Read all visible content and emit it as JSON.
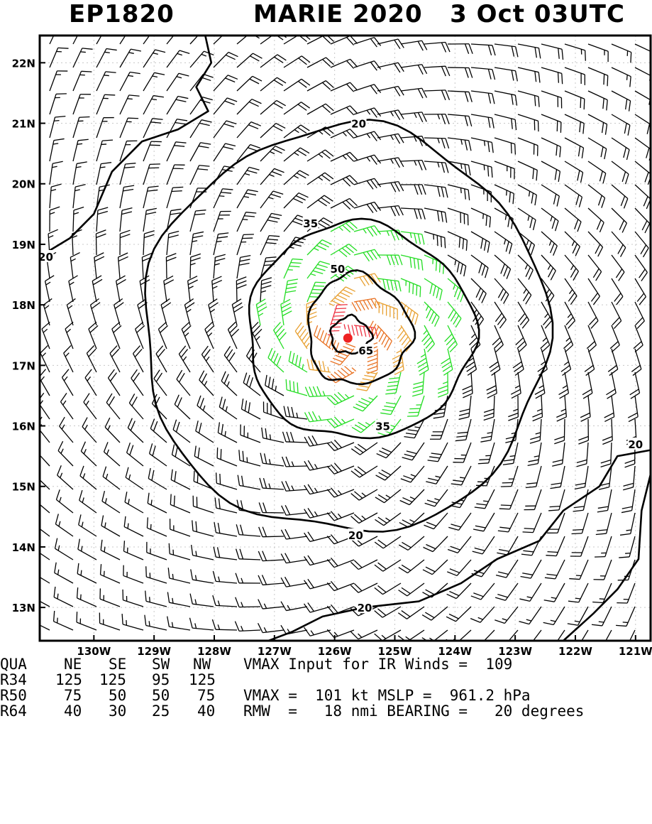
{
  "header": {
    "storm_id": "EP1820",
    "storm_info": "MARIE 2020   3 Oct 03UTC"
  },
  "chart_data": {
    "type": "wind_barb_contour_map",
    "title": "EP1820   MARIE 2020   3 Oct 03UTC",
    "x_axis": {
      "labels": [
        "130W",
        "129W",
        "128W",
        "127W",
        "126W",
        "125W",
        "124W",
        "123W",
        "122W",
        "121W"
      ],
      "values": [
        -130,
        -129,
        -128,
        -127,
        -126,
        -125,
        -124,
        -123,
        -122,
        -121
      ],
      "range": [
        -130.9,
        -120.75
      ]
    },
    "y_axis": {
      "labels": [
        "22N",
        "21N",
        "20N",
        "19N",
        "18N",
        "17N",
        "16N",
        "15N",
        "14N",
        "13N"
      ],
      "values": [
        22,
        21,
        20,
        19,
        18,
        17,
        16,
        15,
        14,
        13
      ],
      "range": [
        12.45,
        22.45
      ]
    },
    "center": {
      "lon": -125.78,
      "lat": 17.45
    },
    "contour_labels": [
      {
        "text": "20",
        "lon": -125.6,
        "lat": 21.0
      },
      {
        "text": "20",
        "lon": -130.8,
        "lat": 18.8
      },
      {
        "text": "20",
        "lon": -125.65,
        "lat": 14.2
      },
      {
        "text": "20",
        "lon": -121.0,
        "lat": 15.7
      },
      {
        "text": "20",
        "lon": -125.5,
        "lat": 13.0
      },
      {
        "text": "35",
        "lon": -126.4,
        "lat": 19.35
      },
      {
        "text": "35",
        "lon": -125.2,
        "lat": 16.0
      },
      {
        "text": "50",
        "lon": -125.95,
        "lat": 18.6
      },
      {
        "text": "65",
        "lon": -125.48,
        "lat": 17.25
      }
    ],
    "wind_speed_color_thresholds": [
      {
        "min": 0,
        "color": "#000000"
      },
      {
        "min": 34,
        "color": "#22dd22"
      },
      {
        "min": 50,
        "color": "#e8a030"
      },
      {
        "min": 64,
        "color": "#e87020"
      },
      {
        "min": 85,
        "color": "#ee3040"
      }
    ],
    "center_color": "#ee2222"
  },
  "table": {
    "rows": [
      [
        "QUA",
        "NE",
        "SE",
        "SW",
        "NW",
        "VMAX Input for IR Winds =  109"
      ],
      [
        "R34",
        "125",
        "125",
        "95",
        "125",
        ""
      ],
      [
        "R50",
        "75",
        "50",
        "50",
        "75",
        "VMAX =  101 kt MSLP =  961.2 hPa"
      ],
      [
        "R64",
        "40",
        "30",
        "25",
        "40",
        "RMW  =   18 nmi BEARING =   20 degrees"
      ]
    ]
  }
}
